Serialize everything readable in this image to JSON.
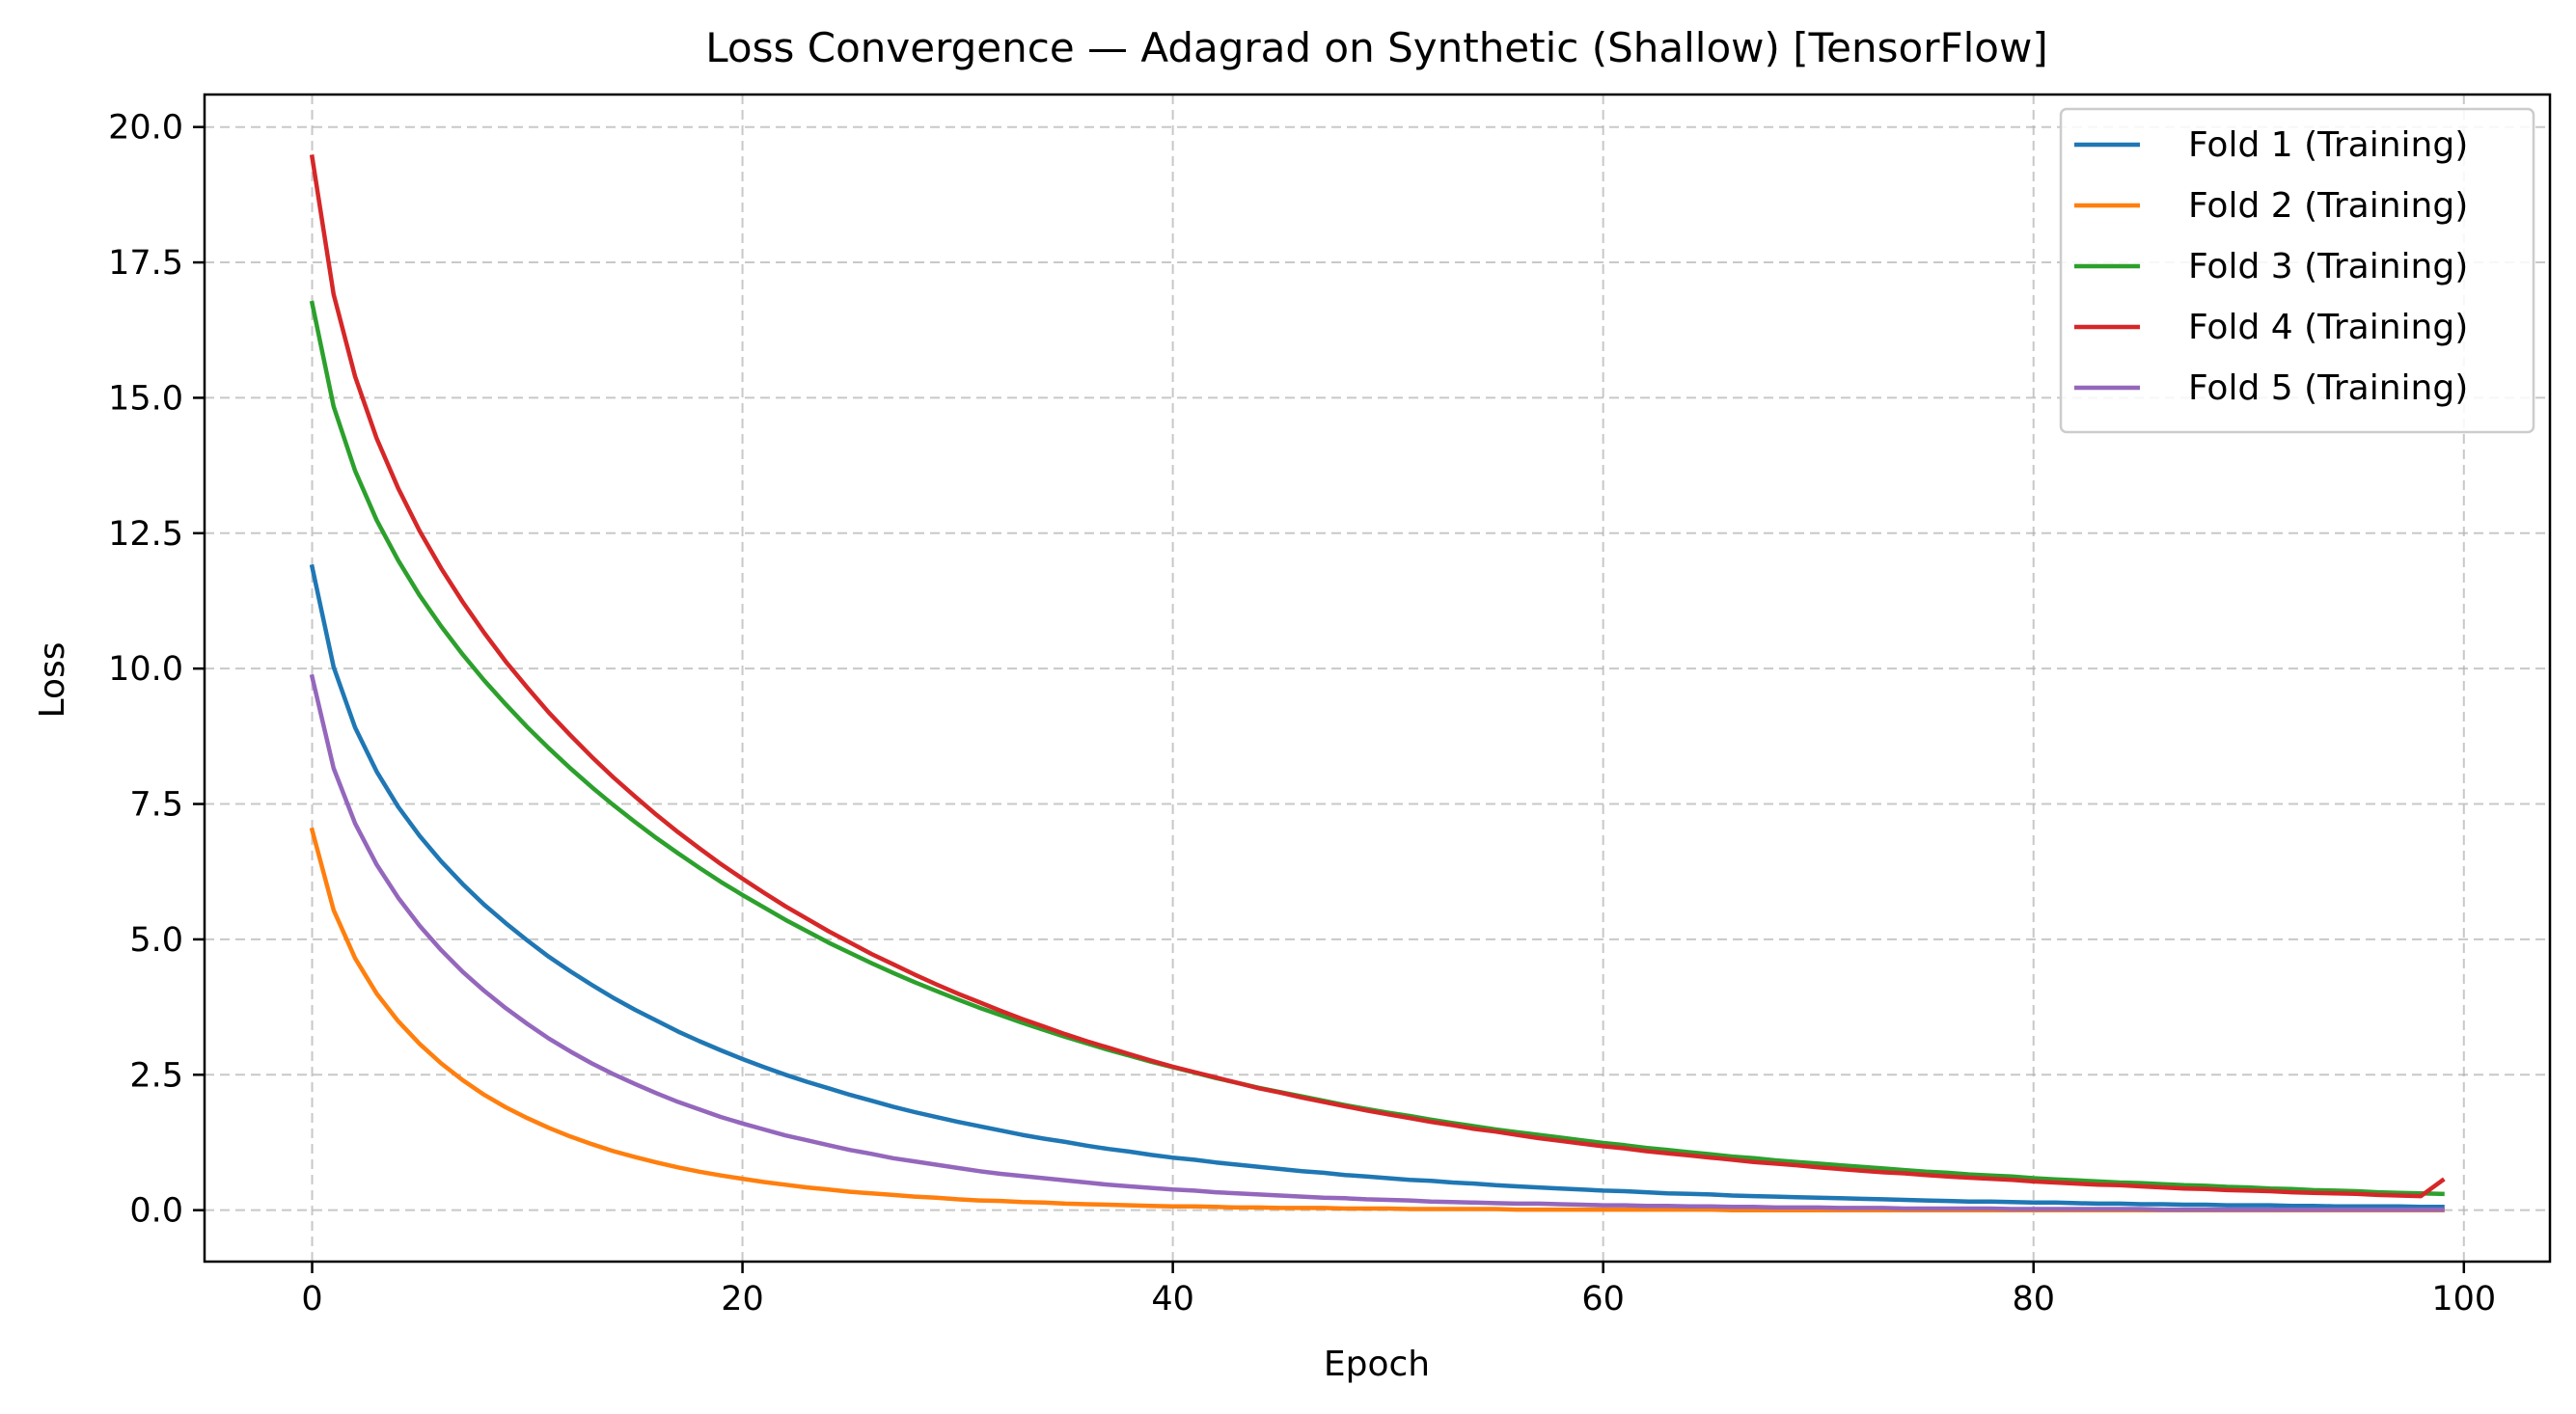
{
  "chart_data": {
    "type": "line",
    "title": "Loss Convergence — Adagrad on Synthetic (Shallow) [TensorFlow]",
    "xlabel": "Epoch",
    "ylabel": "Loss",
    "xlim": [
      -5,
      104
    ],
    "ylim": [
      -0.95,
      20.6
    ],
    "xticks": [
      0,
      20,
      40,
      60,
      80,
      100
    ],
    "xtick_labels": [
      "0",
      "20",
      "40",
      "60",
      "80",
      "100"
    ],
    "yticks": [
      0,
      2.5,
      5,
      7.5,
      10,
      12.5,
      15,
      17.5,
      20
    ],
    "ytick_labels": [
      "0.0",
      "2.5",
      "5.0",
      "7.5",
      "10.0",
      "12.5",
      "15.0",
      "17.5",
      "20.0"
    ],
    "grid": true,
    "legend_position": "top-right",
    "x": [
      0,
      1,
      2,
      3,
      4,
      5,
      6,
      7,
      8,
      9,
      10,
      11,
      12,
      13,
      14,
      15,
      16,
      17,
      18,
      19,
      20,
      21,
      22,
      23,
      24,
      25,
      26,
      27,
      28,
      29,
      30,
      31,
      32,
      33,
      34,
      35,
      36,
      37,
      38,
      39,
      40,
      41,
      42,
      43,
      44,
      45,
      46,
      47,
      48,
      49,
      50,
      51,
      52,
      53,
      54,
      55,
      56,
      57,
      58,
      59,
      60,
      61,
      62,
      63,
      64,
      65,
      66,
      67,
      68,
      69,
      70,
      71,
      72,
      73,
      74,
      75,
      76,
      77,
      78,
      79,
      80,
      81,
      82,
      83,
      84,
      85,
      86,
      87,
      88,
      89,
      90,
      91,
      92,
      93,
      94,
      95,
      96,
      97,
      98,
      99
    ],
    "series": [
      {
        "name": "Fold 1 (Training)",
        "color": "#1f77b4",
        "values": [
          11.88,
          10.03,
          8.91,
          8.1,
          7.45,
          6.91,
          6.44,
          6.02,
          5.64,
          5.3,
          4.98,
          4.68,
          4.41,
          4.16,
          3.92,
          3.7,
          3.5,
          3.3,
          3.12,
          2.95,
          2.79,
          2.64,
          2.5,
          2.37,
          2.25,
          2.13,
          2.02,
          1.91,
          1.81,
          1.72,
          1.63,
          1.55,
          1.47,
          1.39,
          1.32,
          1.26,
          1.19,
          1.13,
          1.08,
          1.02,
          0.97,
          0.93,
          0.88,
          0.84,
          0.8,
          0.76,
          0.72,
          0.69,
          0.65,
          0.62,
          0.59,
          0.56,
          0.54,
          0.51,
          0.49,
          0.46,
          0.44,
          0.42,
          0.4,
          0.38,
          0.36,
          0.35,
          0.33,
          0.31,
          0.3,
          0.29,
          0.27,
          0.26,
          0.25,
          0.24,
          0.23,
          0.22,
          0.21,
          0.2,
          0.19,
          0.18,
          0.17,
          0.16,
          0.16,
          0.15,
          0.14,
          0.14,
          0.13,
          0.12,
          0.12,
          0.11,
          0.11,
          0.1,
          0.1,
          0.09,
          0.09,
          0.09,
          0.08,
          0.08,
          0.07,
          0.07,
          0.07,
          0.07,
          0.06,
          0.06
        ]
      },
      {
        "name": "Fold 2 (Training)",
        "color": "#ff7f0e",
        "values": [
          7.02,
          5.54,
          4.65,
          4.0,
          3.49,
          3.07,
          2.71,
          2.4,
          2.13,
          1.9,
          1.7,
          1.52,
          1.36,
          1.22,
          1.09,
          0.98,
          0.88,
          0.79,
          0.71,
          0.64,
          0.58,
          0.52,
          0.47,
          0.42,
          0.38,
          0.34,
          0.31,
          0.28,
          0.25,
          0.23,
          0.2,
          0.18,
          0.17,
          0.15,
          0.14,
          0.12,
          0.11,
          0.1,
          0.09,
          0.08,
          0.07,
          0.07,
          0.06,
          0.05,
          0.05,
          0.04,
          0.04,
          0.04,
          0.03,
          0.03,
          0.03,
          0.02,
          0.02,
          0.02,
          0.02,
          0.02,
          0.01,
          0.01,
          0.01,
          0.01,
          0.01,
          0.01,
          0.01,
          0.01,
          0.01,
          0.01,
          0.0,
          0.0,
          0.0,
          0.0,
          0.0,
          0.0,
          0.0,
          0.0,
          0.0,
          0.0,
          0.0,
          0.0,
          0.0,
          0.0,
          0.0,
          0.0,
          0.0,
          0.0,
          0.0,
          0.0,
          0.0,
          0.0,
          0.0,
          0.0,
          0.0,
          0.0,
          0.0,
          0.0,
          0.0,
          0.0,
          0.0,
          0.0,
          0.0,
          0.0
        ]
      },
      {
        "name": "Fold 3 (Training)",
        "color": "#2ca02c",
        "values": [
          16.75,
          14.84,
          13.65,
          12.74,
          12.0,
          11.35,
          10.78,
          10.26,
          9.78,
          9.34,
          8.92,
          8.53,
          8.16,
          7.81,
          7.48,
          7.17,
          6.87,
          6.59,
          6.32,
          6.06,
          5.82,
          5.59,
          5.36,
          5.15,
          4.94,
          4.75,
          4.56,
          4.38,
          4.21,
          4.05,
          3.89,
          3.74,
          3.6,
          3.46,
          3.33,
          3.2,
          3.08,
          2.96,
          2.85,
          2.74,
          2.64,
          2.54,
          2.44,
          2.35,
          2.26,
          2.18,
          2.1,
          2.02,
          1.94,
          1.87,
          1.8,
          1.74,
          1.67,
          1.61,
          1.55,
          1.49,
          1.44,
          1.39,
          1.34,
          1.29,
          1.24,
          1.2,
          1.15,
          1.11,
          1.07,
          1.03,
          0.99,
          0.96,
          0.92,
          0.89,
          0.86,
          0.83,
          0.8,
          0.77,
          0.74,
          0.71,
          0.69,
          0.66,
          0.64,
          0.62,
          0.59,
          0.57,
          0.55,
          0.53,
          0.51,
          0.5,
          0.48,
          0.46,
          0.45,
          0.43,
          0.42,
          0.4,
          0.39,
          0.37,
          0.36,
          0.35,
          0.33,
          0.32,
          0.31,
          0.3
        ]
      },
      {
        "name": "Fold 4 (Training)",
        "color": "#d62728",
        "values": [
          19.45,
          16.91,
          15.39,
          14.25,
          13.33,
          12.54,
          11.85,
          11.23,
          10.66,
          10.13,
          9.65,
          9.19,
          8.77,
          8.37,
          7.99,
          7.64,
          7.3,
          6.98,
          6.68,
          6.39,
          6.12,
          5.86,
          5.61,
          5.38,
          5.15,
          4.94,
          4.73,
          4.54,
          4.35,
          4.17,
          4.0,
          3.84,
          3.68,
          3.53,
          3.39,
          3.25,
          3.12,
          3.0,
          2.88,
          2.76,
          2.65,
          2.55,
          2.45,
          2.35,
          2.25,
          2.17,
          2.08,
          2.0,
          1.92,
          1.84,
          1.77,
          1.7,
          1.63,
          1.57,
          1.5,
          1.45,
          1.39,
          1.33,
          1.28,
          1.23,
          1.18,
          1.14,
          1.09,
          1.05,
          1.01,
          0.97,
          0.93,
          0.89,
          0.86,
          0.83,
          0.79,
          0.76,
          0.73,
          0.7,
          0.68,
          0.65,
          0.62,
          0.6,
          0.58,
          0.56,
          0.53,
          0.51,
          0.49,
          0.47,
          0.46,
          0.44,
          0.42,
          0.4,
          0.39,
          0.37,
          0.36,
          0.35,
          0.33,
          0.32,
          0.31,
          0.3,
          0.28,
          0.27,
          0.26,
          0.55
        ]
      },
      {
        "name": "Fold 5 (Training)",
        "color": "#9467bd",
        "values": [
          9.85,
          8.16,
          7.14,
          6.38,
          5.77,
          5.25,
          4.8,
          4.4,
          4.05,
          3.73,
          3.44,
          3.17,
          2.93,
          2.71,
          2.51,
          2.33,
          2.16,
          2.0,
          1.86,
          1.72,
          1.6,
          1.49,
          1.38,
          1.29,
          1.2,
          1.11,
          1.04,
          0.96,
          0.9,
          0.84,
          0.78,
          0.72,
          0.67,
          0.63,
          0.59,
          0.55,
          0.51,
          0.47,
          0.44,
          0.41,
          0.38,
          0.36,
          0.33,
          0.31,
          0.29,
          0.27,
          0.25,
          0.23,
          0.22,
          0.2,
          0.19,
          0.18,
          0.16,
          0.15,
          0.14,
          0.13,
          0.12,
          0.12,
          0.11,
          0.1,
          0.09,
          0.09,
          0.08,
          0.08,
          0.07,
          0.07,
          0.06,
          0.06,
          0.05,
          0.05,
          0.05,
          0.04,
          0.04,
          0.04,
          0.03,
          0.03,
          0.03,
          0.03,
          0.03,
          0.02,
          0.02,
          0.02,
          0.02,
          0.02,
          0.02,
          0.02,
          0.01,
          0.01,
          0.01,
          0.01,
          0.01,
          0.01,
          0.01,
          0.01,
          0.01,
          0.01,
          0.01,
          0.01,
          0.01,
          0.01
        ]
      }
    ]
  }
}
